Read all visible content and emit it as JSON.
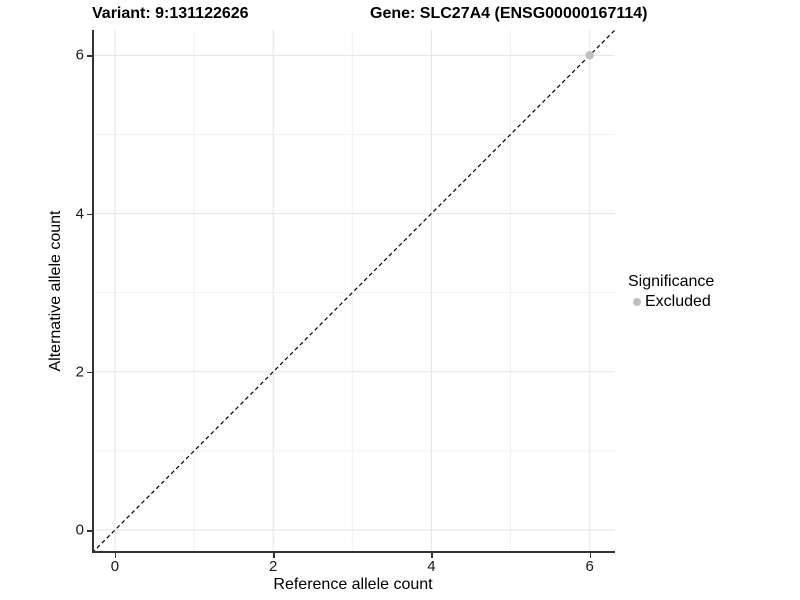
{
  "title": {
    "variant": "Variant: 9:131122626",
    "gene": "Gene: SLC27A4 (ENSG00000167114)"
  },
  "chart_data": {
    "type": "scatter",
    "title": "Variant: 9:131122626  Gene: SLC27A4 (ENSG00000167114)",
    "xlabel": "Reference allele count",
    "ylabel": "Alternative allele count",
    "xlim": [
      -0.29,
      6.32
    ],
    "ylim": [
      -0.29,
      6.32
    ],
    "xticks": [
      0,
      2,
      4,
      6
    ],
    "yticks": [
      0,
      2,
      4,
      6
    ],
    "minor_gridlines": [
      1,
      3,
      5
    ],
    "grid": "on",
    "points": [
      {
        "x": 6,
        "y": 6,
        "significance": "Excluded"
      }
    ],
    "reference_line": {
      "kind": "identity",
      "slope": 1,
      "intercept": 0,
      "style": "dashed"
    },
    "legend": {
      "position": "right",
      "title": "Significance",
      "entries": [
        {
          "label": "Excluded",
          "color": "#bfbfbf"
        }
      ]
    },
    "colors": {
      "point_excluded": "#bfbfbf",
      "major_grid": "#e5e5e5",
      "minor_grid": "#f2f2f2",
      "axis_line": "#333333",
      "dashed_line": "#000000",
      "background": "#ffffff"
    }
  }
}
